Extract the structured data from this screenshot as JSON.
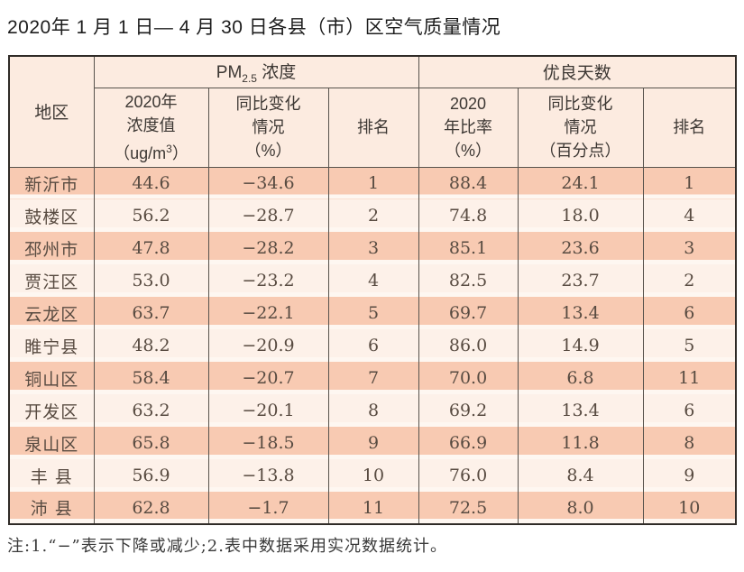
{
  "title": "2020年 1 月 1 日— 4 月 30 日各县（市）区空气质量情况",
  "chart_data": {
    "type": "table",
    "title": "2020年 1 月 1 日— 4 月 30 日各县（市）区空气质量情况",
    "header": {
      "region": "地区",
      "pm25_group": {
        "prefix": "PM",
        "sub": "2.5",
        "suffix": " 浓度"
      },
      "good_days_group": "优良天数",
      "pm_value": {
        "line1": "2020年",
        "line2": "浓度值",
        "line3_prefix": "（ug/m",
        "line3_sup": "3",
        "line3_suffix": "）"
      },
      "pm_change": {
        "line1": "同比变化",
        "line2": "情况",
        "line3": "（%）"
      },
      "pm_rank": "排名",
      "ratio": {
        "line1": "2020",
        "line2": "年比率",
        "line3": "（%）"
      },
      "ratio_change": {
        "line1": "同比变化",
        "line2": "情况",
        "line3": "（百分点）"
      },
      "ratio_rank": "排名"
    },
    "rows": [
      [
        "新沂市",
        "44.6",
        "−34.6",
        "1",
        "88.4",
        "24.1",
        "1"
      ],
      [
        "鼓楼区",
        "56.2",
        "−28.7",
        "2",
        "74.8",
        "18.0",
        "4"
      ],
      [
        "邳州市",
        "47.8",
        "−28.2",
        "3",
        "85.1",
        "23.6",
        "3"
      ],
      [
        "贾汪区",
        "53.0",
        "−23.2",
        "4",
        "82.5",
        "23.7",
        "2"
      ],
      [
        "云龙区",
        "63.7",
        "−22.1",
        "5",
        "69.7",
        "13.4",
        "6"
      ],
      [
        "睢宁县",
        "48.2",
        "−20.9",
        "6",
        "86.0",
        "14.9",
        "5"
      ],
      [
        "铜山区",
        "58.4",
        "−20.7",
        "7",
        "70.0",
        "6.8",
        "11"
      ],
      [
        "开发区",
        "63.2",
        "−20.1",
        "8",
        "69.2",
        "13.4",
        "6"
      ],
      [
        "泉山区",
        "65.8",
        "−18.5",
        "9",
        "66.9",
        "11.8",
        "8"
      ],
      [
        "丰 县",
        "56.9",
        "−13.8",
        "10",
        "76.0",
        "8.4",
        "9"
      ],
      [
        "沛 县",
        "62.8",
        "−1.7",
        "11",
        "72.5",
        "8.0",
        "10"
      ]
    ],
    "note": "注:1.“−”表示下降或减少;2.表中数据采用实况数据统计。"
  },
  "colors": {
    "row_odd": "#f8cab2",
    "row_even": "#fdf1e9",
    "header_bg": "#fcebe0",
    "gap": "#fef7f1",
    "border": "#57524c",
    "outer": "#2f2b27",
    "text": "#584b41"
  }
}
